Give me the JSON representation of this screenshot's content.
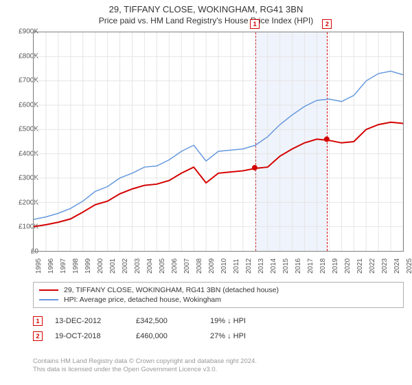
{
  "title": "29, TIFFANY CLOSE, WOKINGHAM, RG41 3BN",
  "subtitle": "Price paid vs. HM Land Registry's House Price Index (HPI)",
  "chart": {
    "type": "line",
    "x_years": [
      1995,
      1996,
      1997,
      1998,
      1999,
      2000,
      2001,
      2002,
      2003,
      2004,
      2005,
      2006,
      2007,
      2008,
      2009,
      2010,
      2011,
      2012,
      2013,
      2014,
      2015,
      2016,
      2017,
      2018,
      2019,
      2020,
      2021,
      2022,
      2023,
      2024,
      2025
    ],
    "ylim": [
      0,
      900
    ],
    "ytick_step": 100,
    "yticks": [
      "£0",
      "£100K",
      "£200K",
      "£300K",
      "£400K",
      "£500K",
      "£600K",
      "£700K",
      "£800K",
      "£900K"
    ],
    "grid_color": "#e5e5e5",
    "background_color": "#ffffff",
    "axis_color": "#808080",
    "series": [
      {
        "key": "property",
        "label": "29, TIFFANY CLOSE, WOKINGHAM, RG41 3BN (detached house)",
        "color": "#d40000",
        "line_width": 2,
        "values": [
          100,
          108,
          118,
          132,
          160,
          190,
          205,
          235,
          255,
          270,
          275,
          290,
          320,
          345,
          280,
          320,
          325,
          330,
          340,
          345,
          390,
          420,
          445,
          460,
          455,
          445,
          450,
          500,
          520,
          530,
          525
        ]
      },
      {
        "key": "hpi",
        "label": "HPI: Average price, detached house, Wokingham",
        "color": "#6699dd",
        "line_width": 1.5,
        "values": [
          130,
          140,
          155,
          175,
          205,
          245,
          265,
          300,
          320,
          345,
          350,
          375,
          410,
          435,
          370,
          410,
          415,
          420,
          435,
          470,
          520,
          560,
          595,
          620,
          625,
          615,
          640,
          700,
          730,
          740,
          725
        ]
      }
    ],
    "shaded_band": {
      "x0_year": 2012.95,
      "x1_year": 2018.8,
      "fill": "rgba(100,140,220,0.1)",
      "border": "#d40000"
    },
    "sale_points": [
      {
        "marker": "1",
        "year": 2012.95,
        "value": 342.5,
        "color": "#d40000"
      },
      {
        "marker": "2",
        "year": 2018.8,
        "value": 460,
        "color": "#d40000"
      }
    ],
    "marker_label_top_offset": -16
  },
  "legend": {
    "rows": [
      {
        "color": "#d40000",
        "label_key": "chart.series.0.label"
      },
      {
        "color": "#6699dd",
        "label_key": "chart.series.1.label"
      }
    ]
  },
  "sales": [
    {
      "marker": "1",
      "date": "13-DEC-2012",
      "price": "£342,500",
      "pct": "19% ↓ HPI"
    },
    {
      "marker": "2",
      "date": "19-OCT-2018",
      "price": "£460,000",
      "pct": "27% ↓ HPI"
    }
  ],
  "attribution": {
    "line1": "Contains HM Land Registry data © Crown copyright and database right 2024.",
    "line2": "This data is licensed under the Open Government Licence v3.0."
  }
}
